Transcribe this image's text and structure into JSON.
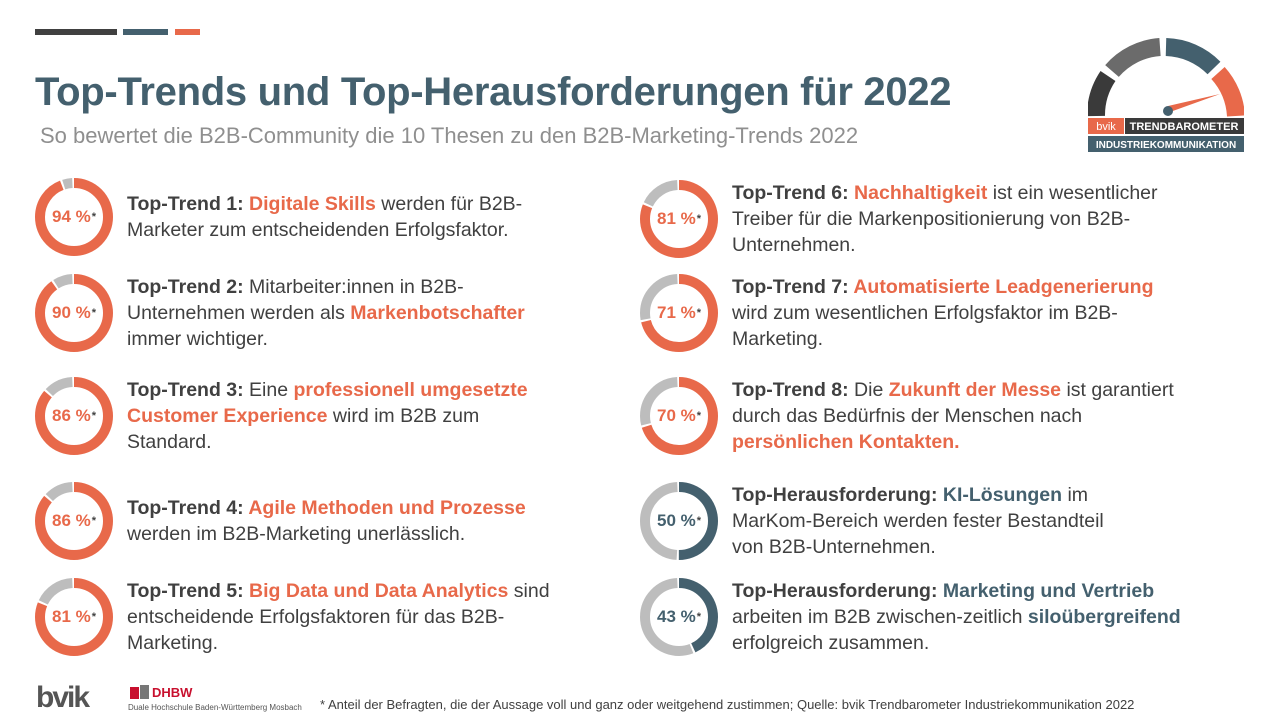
{
  "colors": {
    "accent": "#e8694a",
    "blue": "#44606e",
    "dark": "#404040",
    "gray": "#bdbdbd"
  },
  "header": {
    "title": "Top-Trends und Top-Herausforderungen für 2022",
    "subtitle": "So bewertet die B2B-Community die 10 Thesen zu den B2B-Marketing-Trends 2022"
  },
  "logo": {
    "bvik": "bvik",
    "trendbarometer": "TRENDBAROMETER",
    "industrie": "INDUSTRIEKOMMUNIKATION",
    "dhbw": "DHBW",
    "dhbw_sub": "Duale Hochschule Baden-Württemberg Mosbach"
  },
  "asterisk": "*",
  "items": [
    {
      "pct": 94,
      "pct_label": "94 %",
      "color": "accent",
      "lines": [
        [
          {
            "t": "Top-Trend 1: ",
            "s": "label"
          },
          {
            "t": "Digitale Skills",
            "s": "hl"
          },
          {
            "t": " werden für B2B-",
            "s": ""
          }
        ],
        [
          {
            "t": "Marketer zum entscheidenden Erfolgsfaktor.",
            "s": ""
          }
        ]
      ]
    },
    {
      "pct": 90,
      "pct_label": "90 %",
      "color": "accent",
      "lines": [
        [
          {
            "t": "Top-Trend 2: ",
            "s": "label"
          },
          {
            "t": "Mitarbeiter:innen in B2B-",
            "s": ""
          }
        ],
        [
          {
            "t": "Unternehmen werden als ",
            "s": ""
          },
          {
            "t": "Markenbotschafter",
            "s": "hl"
          }
        ],
        [
          {
            "t": "immer wichtiger.",
            "s": ""
          }
        ]
      ]
    },
    {
      "pct": 86,
      "pct_label": "86 %",
      "color": "accent",
      "lines": [
        [
          {
            "t": "Top-Trend 3: ",
            "s": "label"
          },
          {
            "t": "Eine ",
            "s": ""
          },
          {
            "t": "professionell umgesetzte",
            "s": "hl"
          }
        ],
        [
          {
            "t": "Customer Experience",
            "s": "hl"
          },
          {
            "t": " wird im B2B zum",
            "s": ""
          }
        ],
        [
          {
            "t": "Standard.",
            "s": ""
          }
        ]
      ]
    },
    {
      "pct": 86,
      "pct_label": "86 %",
      "color": "accent",
      "lines": [
        [
          {
            "t": "Top-Trend 4: ",
            "s": "label"
          },
          {
            "t": "Agile Methoden und Prozesse",
            "s": "hl"
          }
        ],
        [
          {
            "t": "werden im B2B-Marketing unerlässlich.",
            "s": ""
          }
        ]
      ]
    },
    {
      "pct": 81,
      "pct_label": "81 %",
      "color": "accent",
      "lines": [
        [
          {
            "t": "Top-Trend 5: ",
            "s": "label"
          },
          {
            "t": "Big Data und Data Analytics",
            "s": "hl"
          },
          {
            "t": " sind",
            "s": ""
          }
        ],
        [
          {
            "t": "entscheidende Erfolgsfaktoren für das B2B-",
            "s": ""
          }
        ],
        [
          {
            "t": "Marketing.",
            "s": ""
          }
        ]
      ]
    },
    {
      "pct": 81,
      "pct_label": "81 %",
      "color": "accent",
      "lines": [
        [
          {
            "t": "Top-Trend 6: ",
            "s": "label"
          },
          {
            "t": "Nachhaltigkeit",
            "s": "hl"
          },
          {
            "t": " ist ein wesentlicher",
            "s": ""
          }
        ],
        [
          {
            "t": "Treiber für die Markenpositionierung von B2B-",
            "s": ""
          }
        ],
        [
          {
            "t": "Unternehmen.",
            "s": ""
          }
        ]
      ]
    },
    {
      "pct": 71,
      "pct_label": "71 %",
      "color": "accent",
      "lines": [
        [
          {
            "t": "Top-Trend 7: ",
            "s": "label"
          },
          {
            "t": "Automatisierte Leadgenerierung",
            "s": "hl"
          }
        ],
        [
          {
            "t": "wird zum wesentlichen Erfolgsfaktor im B2B-",
            "s": ""
          }
        ],
        [
          {
            "t": "Marketing.",
            "s": ""
          }
        ]
      ]
    },
    {
      "pct": 70,
      "pct_label": "70 %",
      "color": "accent",
      "lines": [
        [
          {
            "t": "Top-Trend 8: ",
            "s": "label"
          },
          {
            "t": "Die ",
            "s": ""
          },
          {
            "t": "Zukunft der Messe",
            "s": "hl"
          },
          {
            "t": " ist garantiert",
            "s": ""
          }
        ],
        [
          {
            "t": "durch das Bedürfnis der Menschen nach",
            "s": ""
          }
        ],
        [
          {
            "t": "persönlichen Kontakten.",
            "s": "hl"
          }
        ]
      ]
    },
    {
      "pct": 50,
      "pct_label": "50 %",
      "color": "blue",
      "lines": [
        [
          {
            "t": "Top-Herausforderung: ",
            "s": "label"
          },
          {
            "t": "KI-Lösungen",
            "s": "hb"
          },
          {
            "t": " im",
            "s": ""
          }
        ],
        [
          {
            "t": "MarKom-Bereich werden fester Bestandteil",
            "s": ""
          }
        ],
        [
          {
            "t": "von B2B-Unternehmen.",
            "s": ""
          }
        ]
      ]
    },
    {
      "pct": 43,
      "pct_label": "43 %",
      "color": "blue",
      "lines": [
        [
          {
            "t": "Top-Herausforderung: ",
            "s": "label"
          },
          {
            "t": "Marketing und Vertrieb",
            "s": "hb"
          }
        ],
        [
          {
            "t": "arbeiten im B2B zwischen-zeitlich ",
            "s": ""
          },
          {
            "t": "siloübergreifend",
            "s": "hb"
          }
        ],
        [
          {
            "t": "erfolgreich zusammen.",
            "s": ""
          }
        ]
      ]
    }
  ],
  "footnote": "* Anteil der Befragten, die der Aussage voll und ganz oder weitgehend zustimmen;  Quelle: bvik Trendbarometer Industriekommunikation  2022"
}
